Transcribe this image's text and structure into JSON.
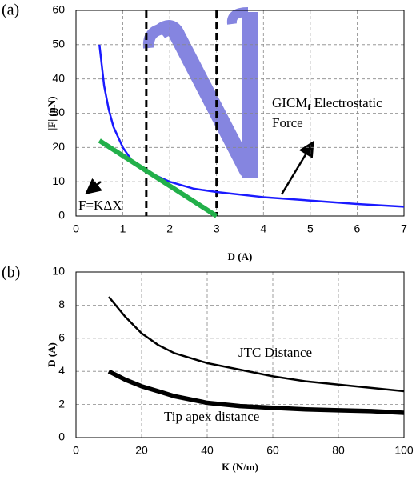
{
  "chart_data": [
    {
      "type": "line",
      "panel": "(a)",
      "xlabel": "D (A)",
      "ylabel": "|F| (nN)",
      "xlim": [
        0,
        7
      ],
      "xticks": [
        0,
        1,
        2,
        3,
        4,
        5,
        6,
        7
      ],
      "ylim": [
        0,
        60
      ],
      "yticks": [
        0,
        10,
        20,
        30,
        40,
        50,
        60
      ],
      "grid": true,
      "vlines": [
        1.5,
        3
      ],
      "series": [
        {
          "color": "#1a1aff",
          "x": [
            0.5,
            0.6,
            0.7,
            0.8,
            1,
            1.2,
            1.5,
            2,
            2.5,
            3,
            4,
            5,
            6,
            7
          ],
          "values": [
            50,
            38,
            31,
            26,
            20,
            16,
            13,
            10,
            8,
            7,
            5.5,
            4.5,
            3.5,
            2.7
          ]
        },
        {
          "color": "#22b04a",
          "x": [
            0.5,
            3
          ],
          "values": [
            22,
            0
          ]
        }
      ],
      "annotations": {
        "force_main": "GICM",
        "force_sub": "f",
        "force_rest": " Electrostatic",
        "force_line2": "Force",
        "spring": "F=KΔX"
      }
    },
    {
      "type": "line",
      "panel": "(b)",
      "xlabel": "K (N/m)",
      "ylabel": "D (A)",
      "xlim": [
        0,
        100
      ],
      "xticks": [
        0,
        20,
        40,
        60,
        80,
        100
      ],
      "ylim": [
        0,
        10
      ],
      "yticks": [
        0,
        2,
        4,
        6,
        8,
        10
      ],
      "grid": true,
      "series": [
        {
          "name": "JTC Distance",
          "color": "#000000",
          "x": [
            10,
            15,
            20,
            25,
            30,
            40,
            50,
            60,
            70,
            80,
            90,
            100
          ],
          "values": [
            8.5,
            7.3,
            6.3,
            5.6,
            5.1,
            4.5,
            4.1,
            3.7,
            3.4,
            3.2,
            3.0,
            2.8
          ]
        },
        {
          "name": "Tip apex distance",
          "color": "#000000",
          "x": [
            10,
            15,
            20,
            25,
            30,
            40,
            50,
            60,
            70,
            80,
            90,
            100
          ],
          "values": [
            4.0,
            3.5,
            3.1,
            2.8,
            2.5,
            2.1,
            1.9,
            1.8,
            1.7,
            1.65,
            1.6,
            1.5
          ]
        }
      ]
    }
  ]
}
